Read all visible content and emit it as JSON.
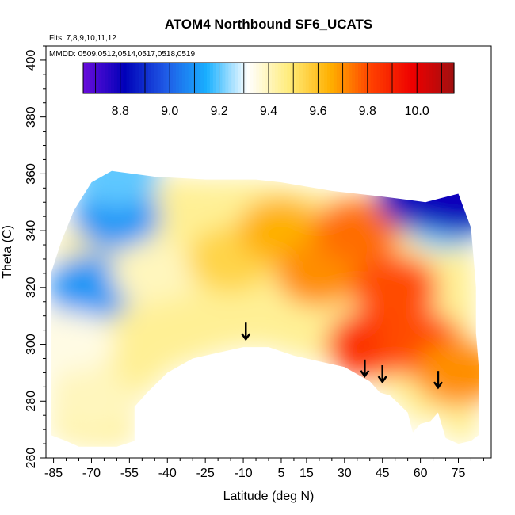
{
  "chart_data": {
    "type": "heatmap",
    "title": "ATOM4 Northbound SF6_UCATS",
    "annotations": {
      "flights": "Flts: 7,8,9,10,11,12",
      "dates": "MMDD: 0509,0512,0514,0517,0518,0519"
    },
    "xlabel": "Latitude (deg N)",
    "ylabel": "Theta (C)",
    "xlim": [
      -88,
      88
    ],
    "ylim": [
      260,
      405
    ],
    "x_ticks": [
      -85,
      -70,
      -55,
      -40,
      -25,
      -10,
      5,
      15,
      30,
      45,
      60,
      75
    ],
    "y_ticks": [
      260,
      280,
      300,
      320,
      340,
      360,
      380,
      400
    ],
    "colorbar": {
      "range": [
        8.65,
        10.15
      ],
      "ticks": [
        8.8,
        9.0,
        9.2,
        9.4,
        9.6,
        9.8,
        10.0
      ],
      "stops": [
        "#6a0ddb",
        "#0000b8",
        "#1f5ae6",
        "#19b0ff",
        "#ffffff",
        "#ffec7a",
        "#ffb000",
        "#ff4000",
        "#ee0000",
        "#a01010"
      ]
    },
    "field_outline_lat_theta": [
      [
        -86,
        268
      ],
      [
        -86,
        325
      ],
      [
        -82,
        336
      ],
      [
        -77,
        347
      ],
      [
        -70,
        357
      ],
      [
        -62,
        361
      ],
      [
        -45,
        359
      ],
      [
        -25,
        358
      ],
      [
        -5,
        358
      ],
      [
        5,
        357
      ],
      [
        25,
        354
      ],
      [
        45,
        352
      ],
      [
        62,
        350
      ],
      [
        75,
        353
      ],
      [
        80,
        341
      ],
      [
        82,
        320
      ],
      [
        82,
        304
      ],
      [
        83,
        293
      ],
      [
        83,
        268
      ],
      [
        80,
        266
      ],
      [
        75,
        265
      ],
      [
        70,
        267
      ],
      [
        67,
        276
      ],
      [
        64,
        273
      ],
      [
        60,
        272
      ],
      [
        57,
        269
      ],
      [
        55,
        276
      ],
      [
        48,
        282
      ],
      [
        44,
        283
      ],
      [
        40,
        287
      ],
      [
        30,
        292
      ],
      [
        20,
        294
      ],
      [
        10,
        296
      ],
      [
        0,
        299
      ],
      [
        -10,
        299
      ],
      [
        -20,
        297
      ],
      [
        -30,
        295
      ],
      [
        -40,
        290
      ],
      [
        -48,
        283
      ],
      [
        -53,
        278
      ],
      [
        -53,
        266
      ],
      [
        -60,
        264
      ],
      [
        -75,
        264
      ],
      [
        -80,
        266
      ],
      [
        -86,
        268
      ]
    ],
    "value_patches_lat_theta": [
      {
        "lat": -70,
        "theta": 320,
        "value": 9.1
      },
      {
        "lat": -60,
        "theta": 345,
        "value": 9.1
      },
      {
        "lat": -78,
        "theta": 300,
        "value": 9.35
      },
      {
        "lat": -70,
        "theta": 280,
        "value": 9.4
      },
      {
        "lat": -45,
        "theta": 325,
        "value": 9.4
      },
      {
        "lat": -35,
        "theta": 305,
        "value": 9.45
      },
      {
        "lat": -15,
        "theta": 330,
        "value": 9.55
      },
      {
        "lat": 5,
        "theta": 340,
        "value": 9.65
      },
      {
        "lat": 20,
        "theta": 325,
        "value": 9.7
      },
      {
        "lat": 35,
        "theta": 340,
        "value": 9.75
      },
      {
        "lat": 40,
        "theta": 300,
        "value": 9.85
      },
      {
        "lat": 50,
        "theta": 320,
        "value": 9.8
      },
      {
        "lat": 60,
        "theta": 300,
        "value": 9.8
      },
      {
        "lat": 75,
        "theta": 290,
        "value": 9.7
      },
      {
        "lat": 70,
        "theta": 345,
        "value": 9.2
      },
      {
        "lat": 60,
        "theta": 352,
        "value": 8.85
      },
      {
        "lat": 75,
        "theta": 350,
        "value": 8.8
      },
      {
        "lat": -60,
        "theta": 360,
        "value": 9.2
      }
    ],
    "arrows_lat_theta": [
      {
        "lat": -9,
        "theta": 304
      },
      {
        "lat": 38,
        "theta": 291
      },
      {
        "lat": 45,
        "theta": 289
      },
      {
        "lat": 67,
        "theta": 287
      }
    ]
  }
}
